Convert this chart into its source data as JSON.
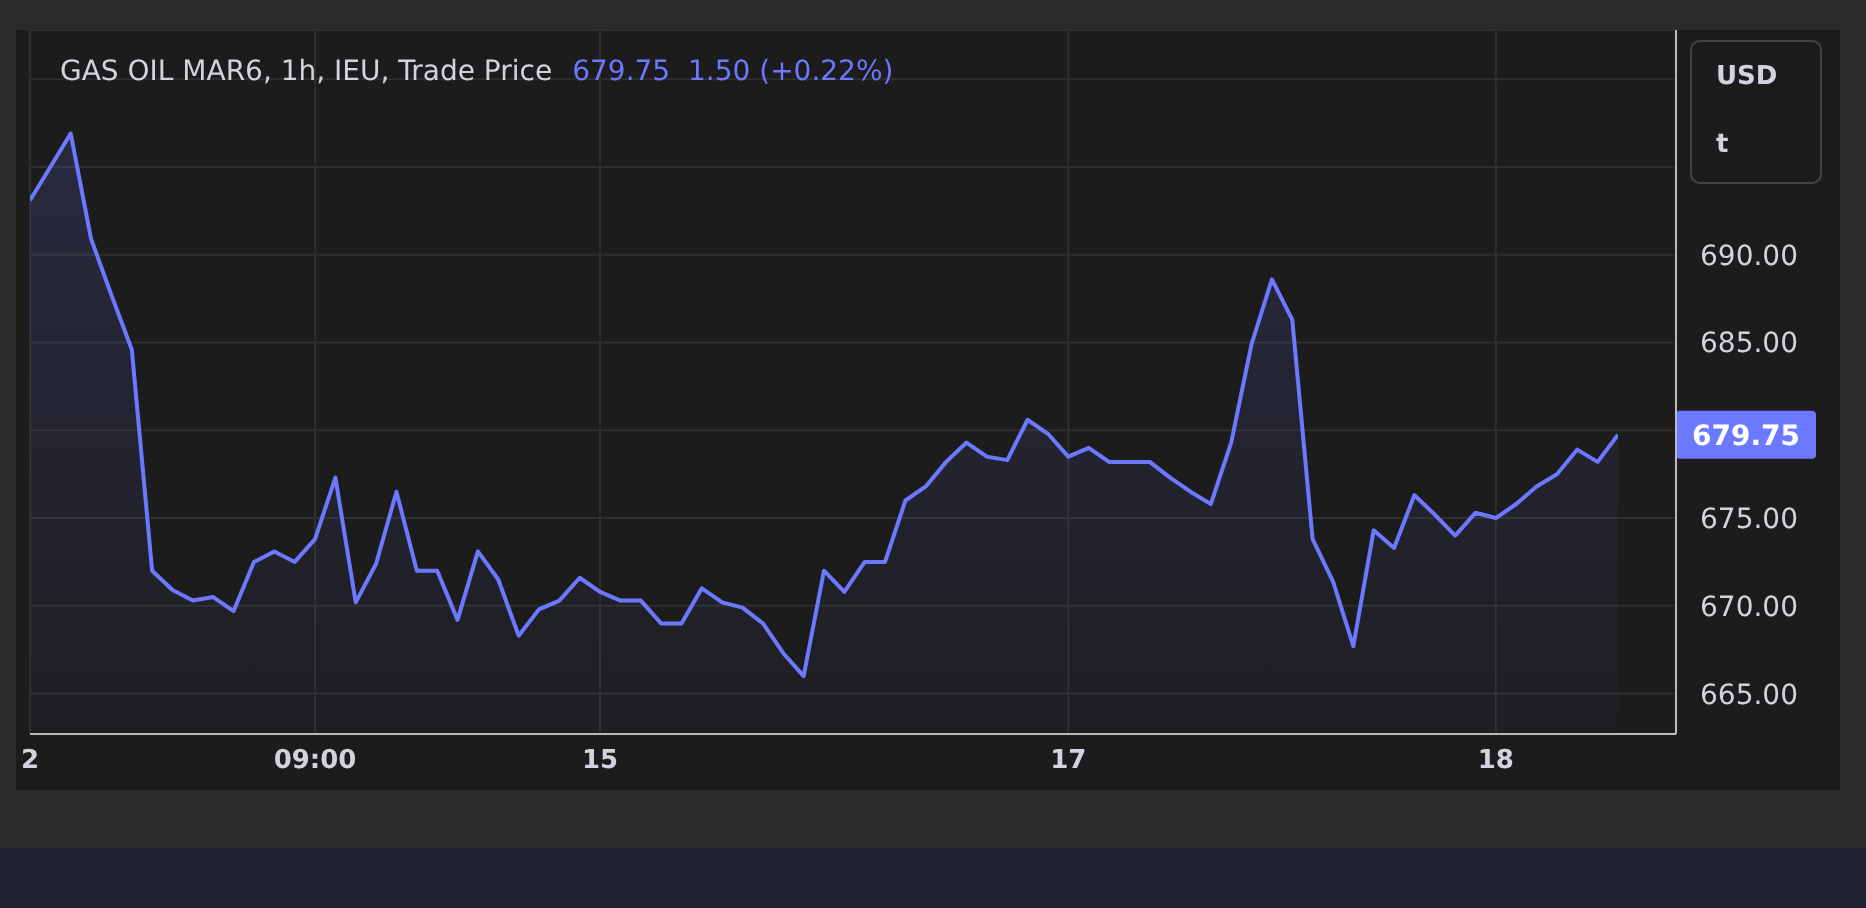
{
  "chart_data": {
    "type": "area",
    "title": "GAS OIL MAR6, 1h, IEU, Trade Price",
    "subtitle": "679.75  1.50 (+0.22%)",
    "categories": [
      "2",
      null,
      null,
      null,
      null,
      null,
      null,
      null,
      null,
      null,
      null,
      null,
      null,
      null,
      "09:00",
      null,
      null,
      null,
      null,
      null,
      null,
      null,
      null,
      null,
      null,
      null,
      null,
      null,
      "15",
      null,
      null,
      null,
      null,
      null,
      null,
      null,
      null,
      null,
      null,
      null,
      null,
      null,
      null,
      null,
      null,
      null,
      null,
      null,
      null,
      null,
      null,
      "17",
      null,
      null,
      null,
      null,
      null,
      null,
      null,
      null,
      null,
      null,
      null,
      null,
      null,
      null,
      null,
      null,
      null,
      null,
      null,
      null,
      "18",
      null,
      null,
      null,
      null,
      null,
      null
    ],
    "series": [
      {
        "color": "#6b78ff",
        "values": [
          693.1,
          695.0,
          696.9,
          690.9,
          687.7,
          684.6,
          672.0,
          670.9,
          670.3,
          670.5,
          669.7,
          672.5,
          673.1,
          672.5,
          673.8,
          677.3,
          670.2,
          672.4,
          676.5,
          672.0,
          672.0,
          669.2,
          673.1,
          671.5,
          668.3,
          669.8,
          670.3,
          671.6,
          670.8,
          670.3,
          670.3,
          669.0,
          669.0,
          671.0,
          670.2,
          669.9,
          669.0,
          667.3,
          666.0,
          672.0,
          670.8,
          672.5,
          672.5,
          676.0,
          676.8,
          678.2,
          679.3,
          678.5,
          678.3,
          680.6,
          679.8,
          678.5,
          679.0,
          678.2,
          678.2,
          678.2,
          677.3,
          676.5,
          675.8,
          679.3,
          684.9,
          688.6,
          686.3,
          673.8,
          671.4,
          667.7,
          674.3,
          673.3,
          676.3,
          675.2,
          674.0,
          675.3,
          675.0,
          675.8,
          676.8,
          677.5,
          678.9,
          678.2,
          679.75
        ]
      }
    ],
    "ylim": [
      662.7,
      702.8
    ],
    "yticks": [
      {
        "value": 665,
        "label": "665.00"
      },
      {
        "value": 670,
        "label": "670.00"
      },
      {
        "value": 675,
        "label": "675.00"
      },
      {
        "value": 680,
        "label": null
      },
      {
        "value": 685,
        "label": "685.00"
      },
      {
        "value": 690,
        "label": "690.00"
      },
      {
        "value": 695,
        "label": null
      },
      {
        "value": 700,
        "label": null
      }
    ],
    "annotations": [
      "USD",
      "t",
      "679.75"
    ],
    "grid": true,
    "marker": "none",
    "line_style": "solid"
  }
}
